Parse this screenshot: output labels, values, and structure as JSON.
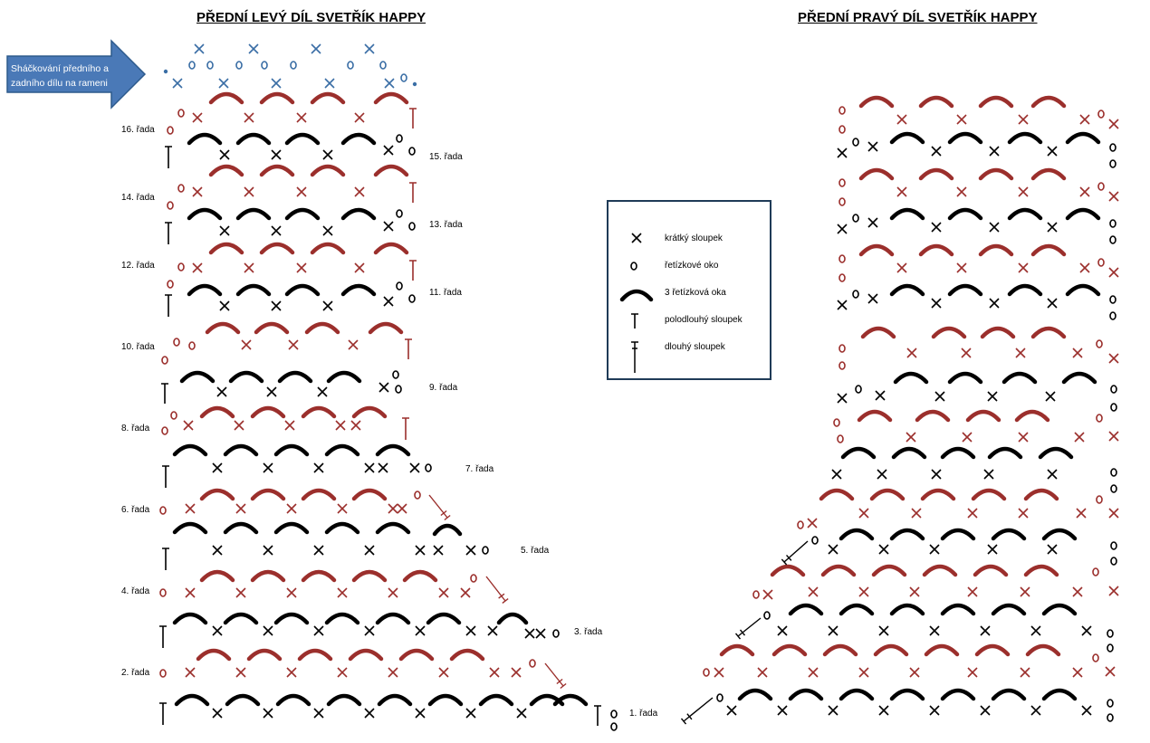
{
  "titles": {
    "left": "PŘEDNÍ LEVÝ DÍL SVETŘÍK HAPPY",
    "right": "PŘEDNÍ PRAVÝ DÍL SVETŘÍK HAPPY"
  },
  "arrow_note": "Sháčkování předního a zadního dílu na rameni",
  "row_labels": {
    "r1": "1. řada",
    "r2": "2. řada",
    "r3": "3. řada",
    "r4": "4. řada",
    "r5": "5. řada",
    "r6": "6. řada",
    "r7": "7. řada",
    "r8": "8. řada",
    "r9": "9. řada",
    "r10": "10. řada",
    "r11": "11. řada",
    "r12": "12. řada",
    "r13": "13. řada",
    "r14": "14. řada",
    "r15": "15. řada",
    "r16": "16. řada"
  },
  "legend": {
    "sc": "krátký sloupek",
    "ch": "řetízkové oko",
    "ch3": "3 řetízková oka",
    "hdc": "polodlouhý sloupek",
    "dc": "dlouhý sloupek"
  },
  "colors": {
    "black": "#000000",
    "red": "#9b2f2c",
    "blue": "#3a6ea5",
    "legend_border": "#1f3b57",
    "arrow_fill": "#4a79b7"
  }
}
